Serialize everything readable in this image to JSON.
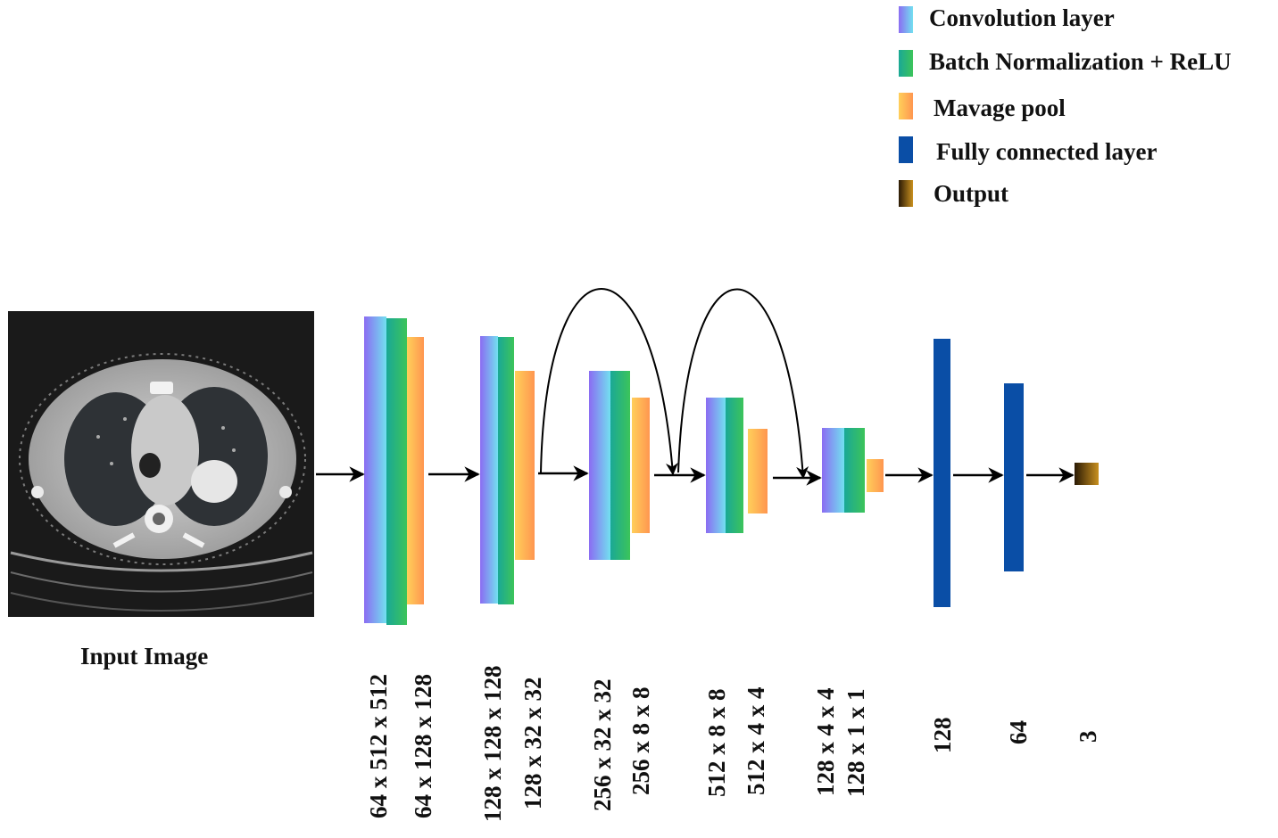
{
  "legend": {
    "conv_label": "Convolution layer",
    "bn_label": "Batch Normalization + ReLU",
    "pool_label": "Mavage pool",
    "fc_label": "Fully connected layer",
    "output_label": "Output"
  },
  "input_caption": "Input Image",
  "dims": {
    "d1": "64 x 512 x 512",
    "d2": "64 x 128 x 128",
    "d3": "128 x 128 x 128",
    "d4": "128 x 32 x 32",
    "d5": "256 x 32 x 32",
    "d6": "256 x 8 x 8",
    "d7": "512 x 8 x 8",
    "d8": "512 x 4 x 4",
    "d9": "128 x 4 x 4",
    "d10": "128 x 1 x 1",
    "d11": "128",
    "d12": "64",
    "d13": "3"
  },
  "colors": {
    "conv_start": "#8b6cf2",
    "conv_end": "#6fd6f2",
    "bn_start": "#1fb88a",
    "bn_end": "#2fbd56",
    "pool_start": "#ffbf52",
    "pool_end": "#ff9a50",
    "fc": "#0a4ea6",
    "out_start": "#3a2a08",
    "out_end": "#c88a20"
  }
}
